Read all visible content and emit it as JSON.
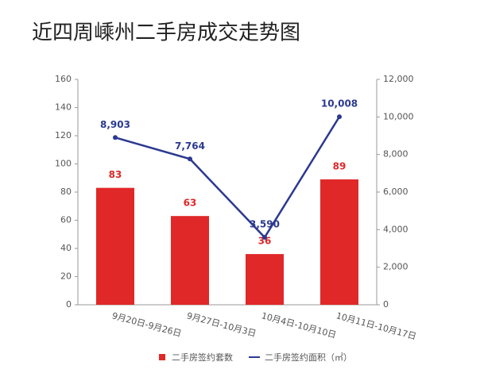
{
  "chart_data": {
    "type": "bar",
    "title": "近四周嵊州二手房成交走势图",
    "categories": [
      "9月20日-9月26日",
      "9月27日-10月3日",
      "10月4日-10月10日",
      "10月11日-10月17日"
    ],
    "series": [
      {
        "name": "二手房签约套数",
        "type": "bar",
        "color": "#e02828",
        "values": [
          83,
          63,
          36,
          89
        ]
      },
      {
        "name": "二手房签约面积（㎡）",
        "type": "line",
        "axis": "y2",
        "color": "#2b3990",
        "values": [
          8903,
          7764,
          3590,
          10008
        ],
        "value_labels": [
          "8,903",
          "7,764",
          "3,590",
          "10,008"
        ]
      }
    ],
    "ylim": [
      0,
      160
    ],
    "yticks": [
      0,
      20,
      40,
      60,
      80,
      100,
      120,
      140,
      160
    ],
    "y2lim": [
      0,
      12000
    ],
    "y2ticks": [
      0,
      {
        "value": 2000,
        "label": "2,000"
      },
      {
        "value": 4000,
        "label": "4,000"
      },
      {
        "value": 6000,
        "label": "6,000"
      },
      {
        "value": 8000,
        "label": "8,000"
      },
      {
        "value": 10000,
        "label": "10,000"
      },
      {
        "value": 12000,
        "label": "12,000"
      }
    ]
  }
}
